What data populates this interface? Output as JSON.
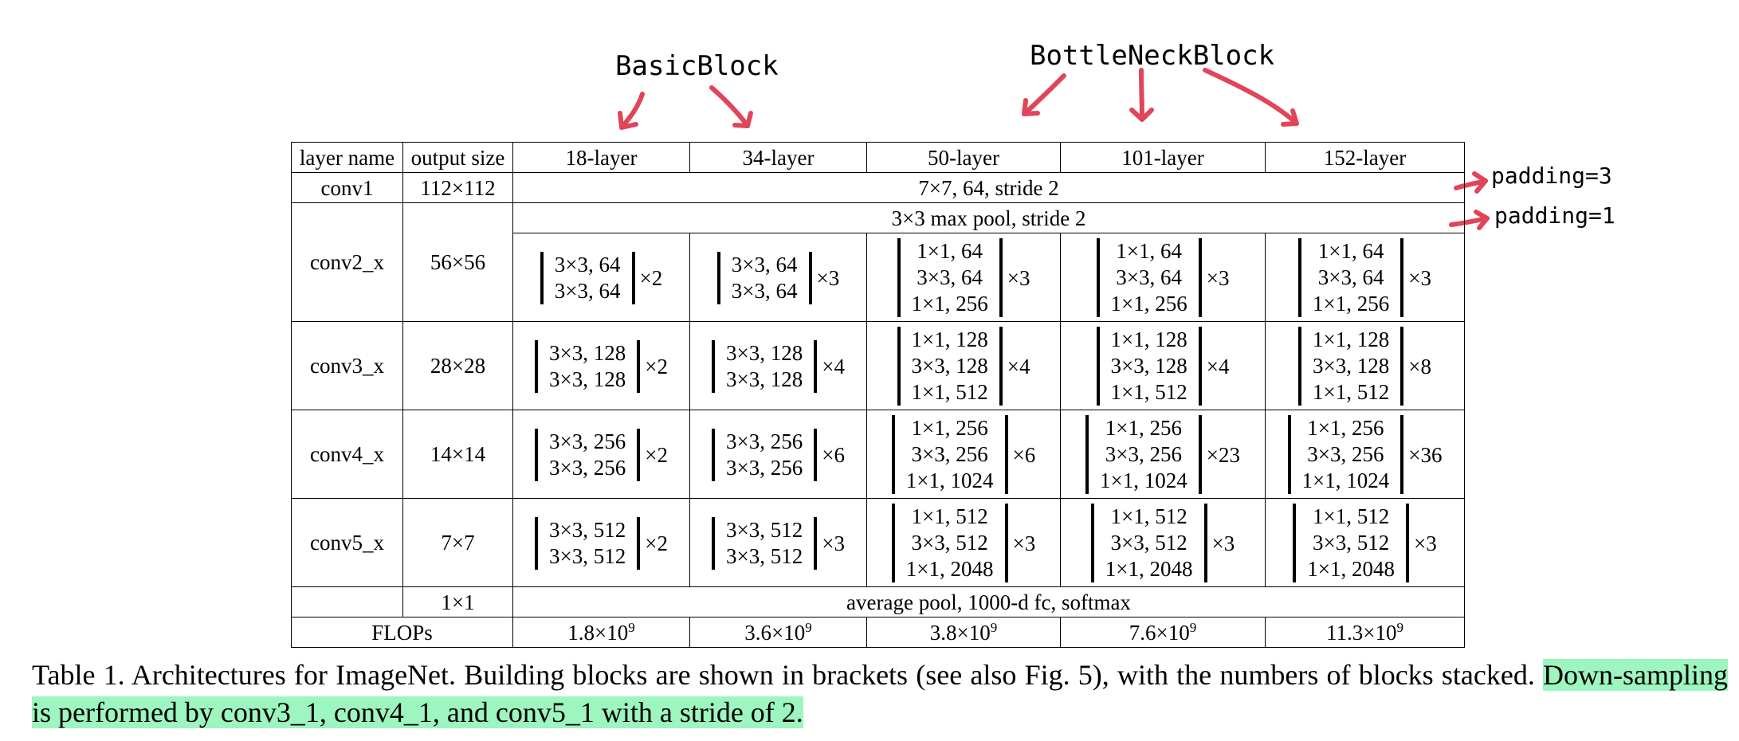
{
  "annotations": {
    "basic_block": "BasicBlock",
    "bottleneck_block": "BottleNeckBlock",
    "padding_conv1": "padding=3",
    "padding_pool": "padding=1",
    "arrow_color": "#e0455a"
  },
  "table": {
    "headers": [
      "layer name",
      "output size",
      "18-layer",
      "34-layer",
      "50-layer",
      "101-layer",
      "152-layer"
    ],
    "conv1": {
      "name": "conv1",
      "size": "112×112",
      "spec": "7×7, 64, stride 2"
    },
    "pool": {
      "spec": "3×3 max pool, stride 2"
    },
    "stages": [
      {
        "name": "conv2_x",
        "size": "56×56",
        "cells": [
          {
            "lines": [
              "3×3, 64",
              "3×3, 64"
            ],
            "mult": "×2"
          },
          {
            "lines": [
              "3×3, 64",
              "3×3, 64"
            ],
            "mult": "×3"
          },
          {
            "lines": [
              "1×1, 64",
              "3×3, 64",
              "1×1, 256"
            ],
            "mult": "×3"
          },
          {
            "lines": [
              "1×1, 64",
              "3×3, 64",
              "1×1, 256"
            ],
            "mult": "×3"
          },
          {
            "lines": [
              "1×1, 64",
              "3×3, 64",
              "1×1, 256"
            ],
            "mult": "×3"
          }
        ]
      },
      {
        "name": "conv3_x",
        "size": "28×28",
        "cells": [
          {
            "lines": [
              "3×3, 128",
              "3×3, 128"
            ],
            "mult": "×2"
          },
          {
            "lines": [
              "3×3, 128",
              "3×3, 128"
            ],
            "mult": "×4"
          },
          {
            "lines": [
              "1×1, 128",
              "3×3, 128",
              "1×1, 512"
            ],
            "mult": "×4"
          },
          {
            "lines": [
              "1×1, 128",
              "3×3, 128",
              "1×1, 512"
            ],
            "mult": "×4"
          },
          {
            "lines": [
              "1×1, 128",
              "3×3, 128",
              "1×1, 512"
            ],
            "mult": "×8"
          }
        ]
      },
      {
        "name": "conv4_x",
        "size": "14×14",
        "cells": [
          {
            "lines": [
              "3×3, 256",
              "3×3, 256"
            ],
            "mult": "×2"
          },
          {
            "lines": [
              "3×3, 256",
              "3×3, 256"
            ],
            "mult": "×6"
          },
          {
            "lines": [
              "1×1, 256",
              "3×3, 256",
              "1×1, 1024"
            ],
            "mult": "×6"
          },
          {
            "lines": [
              "1×1, 256",
              "3×3, 256",
              "1×1, 1024"
            ],
            "mult": "×23"
          },
          {
            "lines": [
              "1×1, 256",
              "3×3, 256",
              "1×1, 1024"
            ],
            "mult": "×36"
          }
        ]
      },
      {
        "name": "conv5_x",
        "size": "7×7",
        "cells": [
          {
            "lines": [
              "3×3, 512",
              "3×3, 512"
            ],
            "mult": "×2"
          },
          {
            "lines": [
              "3×3, 512",
              "3×3, 512"
            ],
            "mult": "×3"
          },
          {
            "lines": [
              "1×1, 512",
              "3×3, 512",
              "1×1, 2048"
            ],
            "mult": "×3"
          },
          {
            "lines": [
              "1×1, 512",
              "3×3, 512",
              "1×1, 2048"
            ],
            "mult": "×3"
          },
          {
            "lines": [
              "1×1, 512",
              "3×3, 512",
              "1×1, 2048"
            ],
            "mult": "×3"
          }
        ]
      }
    ],
    "final": {
      "size": "1×1",
      "spec": "average pool, 1000-d fc, softmax"
    },
    "flops": {
      "label": "FLOPs",
      "values": [
        {
          "base": "1.8×10",
          "exp": "9"
        },
        {
          "base": "3.6×10",
          "exp": "9"
        },
        {
          "base": "3.8×10",
          "exp": "9"
        },
        {
          "base": "7.6×10",
          "exp": "9"
        },
        {
          "base": "11.3×10",
          "exp": "9"
        }
      ]
    }
  },
  "caption": {
    "main": "Table 1. Architectures for ImageNet. Building blocks are shown in brackets (see also Fig. 5), with the numbers of blocks stacked. ",
    "highlight": "Down-sampling is performed by conv3_1, conv4_1, and conv5_1 with a stride of 2.",
    "highlight_color": "#9df5bf"
  }
}
